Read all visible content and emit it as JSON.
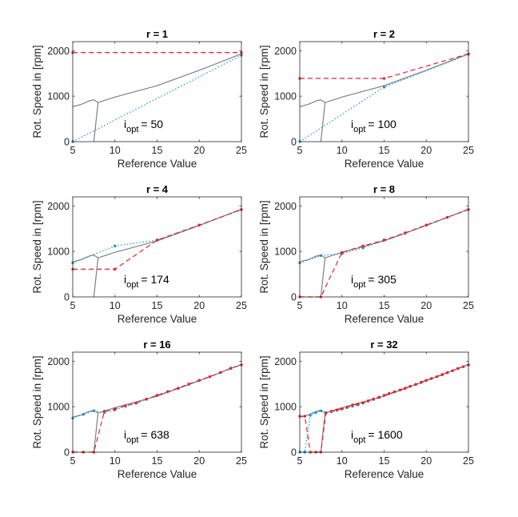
{
  "chart_data": [
    {
      "type": "line",
      "title": "r = 1",
      "xlabel": "Reference Value",
      "ylabel": "Rot. Speed in [rpm]",
      "xlim": [
        5,
        25
      ],
      "ylim": [
        0,
        2200
      ],
      "xticks": [
        "5",
        "10",
        "15",
        "20",
        "25"
      ],
      "yticks": [
        "0",
        "1000",
        "2000"
      ],
      "annotation": {
        "base": "i",
        "sub": "opt",
        "value": "= 50"
      },
      "series": [
        {
          "style": "gray",
          "x": [
            5,
            6,
            7,
            7.5,
            8,
            10,
            15,
            20,
            25
          ],
          "y": [
            770,
            820,
            900,
            920,
            860,
            980,
            1230,
            1570,
            1930
          ]
        },
        {
          "style": "gray",
          "x": [
            7.5,
            8
          ],
          "y": [
            0,
            860
          ]
        },
        {
          "style": "blue-dotted",
          "x": [
            5,
            25
          ],
          "y": [
            0,
            1900
          ]
        },
        {
          "style": "red-dashed",
          "x": [
            5,
            25
          ],
          "y": [
            1960,
            1960
          ]
        }
      ]
    },
    {
      "type": "line",
      "title": "r = 2",
      "xlabel": "Reference Value",
      "ylabel": "Rot. Speed in [rpm]",
      "xlim": [
        5,
        25
      ],
      "ylim": [
        0,
        2200
      ],
      "xticks": [
        "5",
        "10",
        "15",
        "20",
        "25"
      ],
      "yticks": [
        "0",
        "1000",
        "2000"
      ],
      "annotation": {
        "base": "i",
        "sub": "opt",
        "value": "= 100"
      },
      "series": [
        {
          "style": "gray",
          "x": [
            5,
            6,
            7,
            7.5,
            8,
            10,
            15,
            20,
            25
          ],
          "y": [
            770,
            820,
            900,
            920,
            860,
            980,
            1230,
            1570,
            1930
          ]
        },
        {
          "style": "gray",
          "x": [
            7.5,
            8
          ],
          "y": [
            0,
            860
          ]
        },
        {
          "style": "blue-dotted",
          "x": [
            5,
            15,
            25
          ],
          "y": [
            0,
            1200,
            1920
          ]
        },
        {
          "style": "red-dashed",
          "x": [
            5,
            15,
            25
          ],
          "y": [
            1390,
            1390,
            1930
          ]
        }
      ]
    },
    {
      "type": "line",
      "title": "r = 4",
      "xlabel": "Reference Value",
      "ylabel": "Rot. Speed in [rpm]",
      "xlim": [
        5,
        25
      ],
      "ylim": [
        0,
        2200
      ],
      "xticks": [
        "5",
        "10",
        "15",
        "20",
        "25"
      ],
      "yticks": [
        "0",
        "1000",
        "2000"
      ],
      "annotation": {
        "base": "i",
        "sub": "opt",
        "value": "= 174"
      },
      "series": [
        {
          "style": "gray",
          "x": [
            5,
            6,
            7,
            7.5,
            8,
            10,
            15,
            20,
            25
          ],
          "y": [
            770,
            820,
            900,
            920,
            860,
            980,
            1230,
            1570,
            1930
          ]
        },
        {
          "style": "gray",
          "x": [
            7.5,
            8
          ],
          "y": [
            0,
            860
          ]
        },
        {
          "style": "blue-dotted",
          "x": [
            5,
            10,
            15,
            20,
            25
          ],
          "y": [
            750,
            1120,
            1250,
            1580,
            1920
          ]
        },
        {
          "style": "red-dashed",
          "x": [
            5,
            10,
            15,
            20,
            25
          ],
          "y": [
            610,
            610,
            1250,
            1580,
            1920
          ]
        }
      ]
    },
    {
      "type": "line",
      "title": "r = 8",
      "xlabel": "Reference Value",
      "ylabel": "Rot. Speed in [rpm]",
      "xlim": [
        5,
        25
      ],
      "ylim": [
        0,
        2200
      ],
      "xticks": [
        "5",
        "10",
        "15",
        "20",
        "25"
      ],
      "yticks": [
        "0",
        "1000",
        "2000"
      ],
      "annotation": {
        "base": "i",
        "sub": "opt",
        "value": "= 305"
      },
      "series": [
        {
          "style": "gray",
          "x": [
            5,
            6,
            7,
            7.5,
            8,
            10,
            15,
            20,
            25
          ],
          "y": [
            770,
            820,
            900,
            920,
            860,
            980,
            1230,
            1570,
            1930
          ]
        },
        {
          "style": "gray",
          "x": [
            7.5,
            8
          ],
          "y": [
            0,
            860
          ]
        },
        {
          "style": "blue-dotted",
          "x": [
            5,
            7.5,
            10,
            12.5,
            15,
            17.5,
            20,
            22.5,
            25
          ],
          "y": [
            750,
            910,
            950,
            1080,
            1250,
            1400,
            1580,
            1750,
            1920
          ]
        },
        {
          "style": "red-dashed",
          "x": [
            5,
            7.5,
            10,
            12.5,
            15,
            17.5,
            20,
            22.5,
            25
          ],
          "y": [
            0,
            0,
            980,
            1120,
            1250,
            1410,
            1580,
            1750,
            1920
          ]
        }
      ]
    },
    {
      "type": "line",
      "title": "r = 16",
      "xlabel": "Reference Value",
      "ylabel": "Rot. Speed in [rpm]",
      "xlim": [
        5,
        25
      ],
      "ylim": [
        0,
        2200
      ],
      "xticks": [
        "5",
        "10",
        "15",
        "20",
        "25"
      ],
      "yticks": [
        "0",
        "1000",
        "2000"
      ],
      "annotation": {
        "base": "i",
        "sub": "opt",
        "value": "= 638"
      },
      "series": [
        {
          "style": "gray",
          "x": [
            5,
            6,
            7,
            7.5,
            8,
            10,
            15,
            20,
            25
          ],
          "y": [
            770,
            820,
            900,
            920,
            860,
            980,
            1230,
            1570,
            1930
          ]
        },
        {
          "style": "gray",
          "x": [
            7.5,
            8
          ],
          "y": [
            0,
            860
          ]
        },
        {
          "style": "blue-dotted",
          "x": [
            5,
            6.25,
            7.5,
            8.75,
            10,
            11.25,
            12.5,
            13.75,
            15,
            16.25,
            17.5,
            18.75,
            20,
            21.25,
            22.5,
            23.75,
            25
          ],
          "y": [
            750,
            830,
            910,
            870,
            930,
            1010,
            1080,
            1160,
            1250,
            1330,
            1400,
            1490,
            1580,
            1660,
            1750,
            1840,
            1920
          ]
        },
        {
          "style": "red-dashed",
          "x": [
            5,
            6.25,
            7.5,
            8.75,
            10,
            11.25,
            12.5,
            13.75,
            15,
            16.25,
            17.5,
            18.75,
            20,
            21.25,
            22.5,
            23.75,
            25
          ],
          "y": [
            0,
            0,
            0,
            900,
            950,
            1020,
            1080,
            1170,
            1250,
            1330,
            1410,
            1500,
            1580,
            1660,
            1750,
            1850,
            1920
          ]
        }
      ]
    },
    {
      "type": "line",
      "title": "r = 32",
      "xlabel": "Reference Value",
      "ylabel": "Rot. Speed in [rpm]",
      "xlim": [
        5,
        25
      ],
      "ylim": [
        0,
        2200
      ],
      "xticks": [
        "5",
        "10",
        "15",
        "20",
        "25"
      ],
      "yticks": [
        "0",
        "1000",
        "2000"
      ],
      "annotation": {
        "base": "i",
        "sub": "opt",
        "value": "= 1600"
      },
      "series": [
        {
          "style": "gray",
          "x": [
            5,
            6,
            7,
            7.5,
            8,
            10,
            15,
            20,
            25
          ],
          "y": [
            770,
            820,
            900,
            920,
            860,
            980,
            1230,
            1570,
            1930
          ]
        },
        {
          "style": "gray",
          "x": [
            7.5,
            8
          ],
          "y": [
            0,
            860
          ]
        },
        {
          "style": "blue-dotted",
          "x": [
            5,
            5.6,
            6.25,
            6.9,
            7.5,
            8.1,
            8.75,
            9.4,
            10,
            10.6,
            11.25,
            11.9,
            12.5,
            13.1,
            13.75,
            14.4,
            15,
            15.6,
            16.25,
            16.9,
            17.5,
            18.1,
            18.75,
            19.4,
            20,
            20.6,
            21.25,
            21.9,
            22.5,
            23.1,
            23.75,
            24.4,
            25
          ],
          "y": [
            0,
            0,
            810,
            870,
            910,
            870,
            890,
            920,
            950,
            980,
            1010,
            1040,
            1080,
            1120,
            1160,
            1200,
            1250,
            1290,
            1330,
            1370,
            1400,
            1450,
            1490,
            1530,
            1580,
            1620,
            1660,
            1700,
            1750,
            1790,
            1840,
            1880,
            1920
          ]
        },
        {
          "style": "red-dashed",
          "x": [
            5,
            5.6,
            6.25,
            6.9,
            7.5,
            8.1,
            8.75,
            9.4,
            10,
            10.6,
            11.25,
            11.9,
            12.5,
            13.1,
            13.75,
            14.4,
            15,
            15.6,
            16.25,
            16.9,
            17.5,
            18.1,
            18.75,
            19.4,
            20,
            20.6,
            21.25,
            21.9,
            22.5,
            23.1,
            23.75,
            24.4,
            25
          ],
          "y": [
            790,
            790,
            0,
            0,
            0,
            860,
            900,
            930,
            950,
            990,
            1040,
            1060,
            1090,
            1130,
            1170,
            1210,
            1250,
            1290,
            1330,
            1370,
            1410,
            1450,
            1490,
            1540,
            1580,
            1620,
            1660,
            1710,
            1750,
            1790,
            1840,
            1880,
            1920
          ]
        }
      ]
    }
  ]
}
